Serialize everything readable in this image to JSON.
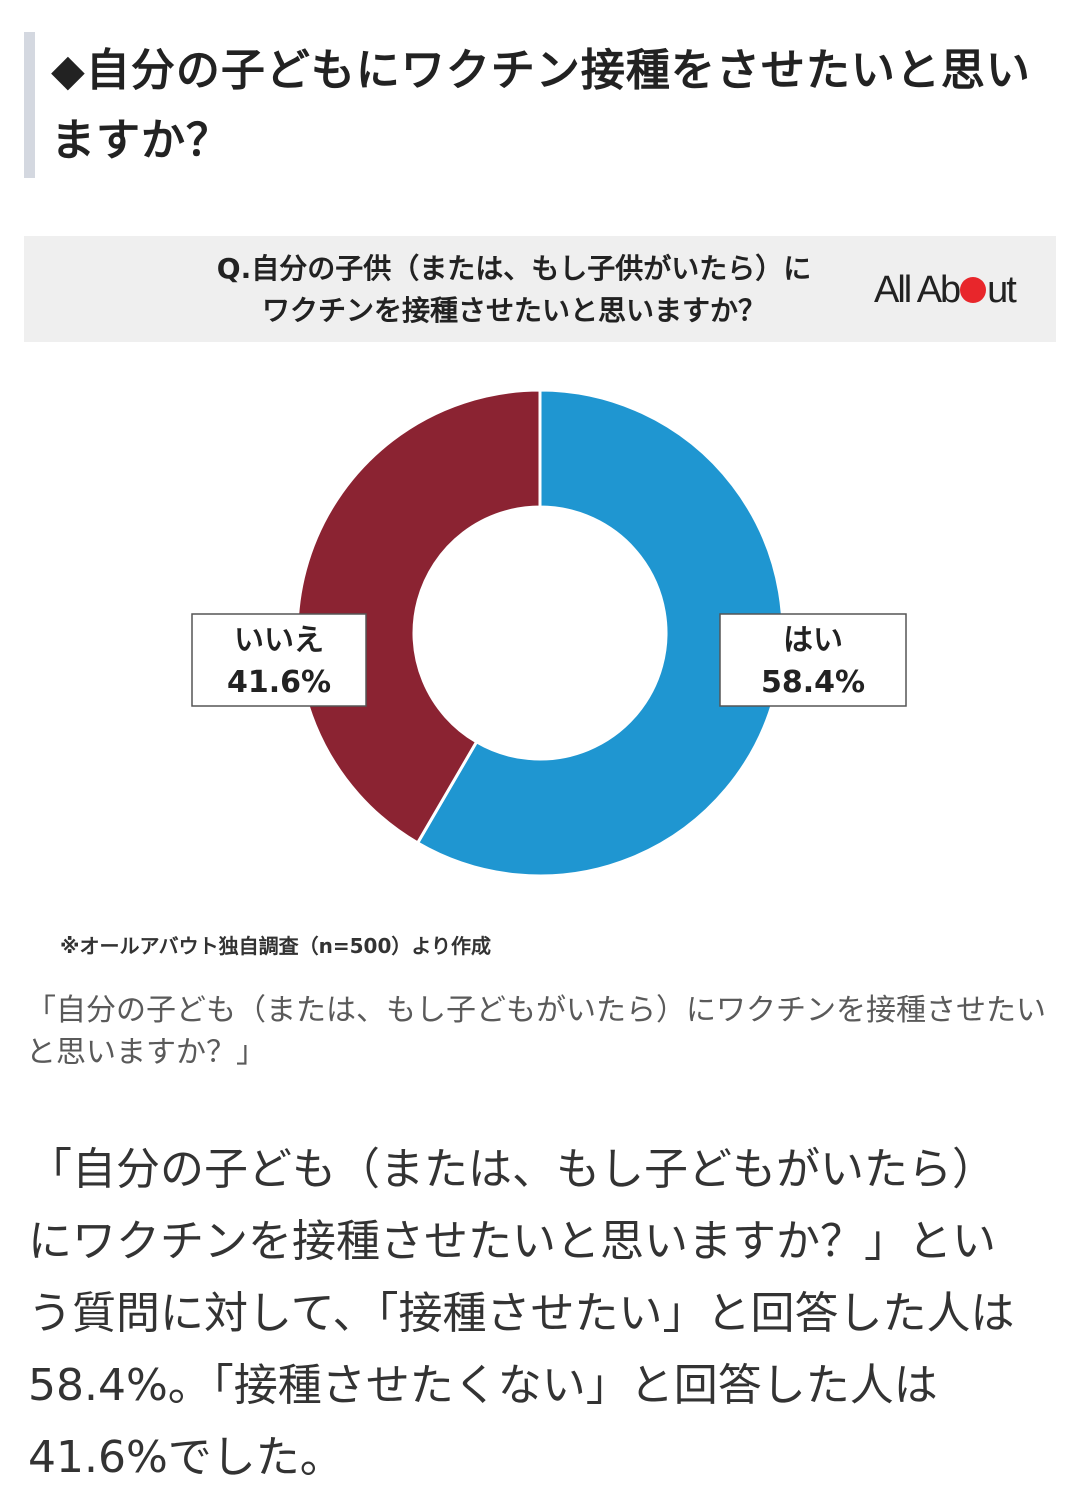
{
  "heading": "◆自分の子どもにワクチン接種をさせたいと思いますか？",
  "figure": {
    "title_line1": "Q.自分の子供（または、もし子供がいたら）に",
    "title_line2": "ワクチンを接種させたいと思いますか？",
    "logo_left": "All Ab",
    "logo_right": "ut",
    "source_note": "※オールアバウト独自調査（n=500）より作成"
  },
  "chart_data": {
    "type": "pie",
    "title": "Q.自分の子供（または、もし子供がいたら）にワクチンを接種させたいと思いますか？",
    "slices": [
      {
        "label": "はい",
        "value": 58.4,
        "display": "58.4%",
        "color": "#1f96d1"
      },
      {
        "label": "いいえ",
        "value": 41.6,
        "display": "41.6%",
        "color": "#8b2332"
      }
    ],
    "donut": true
  },
  "caption": "「自分の子ども（または、もし子どもがいたら）にワクチンを接種させたいと思いますか？」",
  "body": "「自分の子ども（または、もし子どもがいたら）にワクチンを接種させたいと思いますか？」という質問に対して、「接種させたい」と回答した人は58.4%。「接種させたくない」と回答した人は41.6%でした。"
}
